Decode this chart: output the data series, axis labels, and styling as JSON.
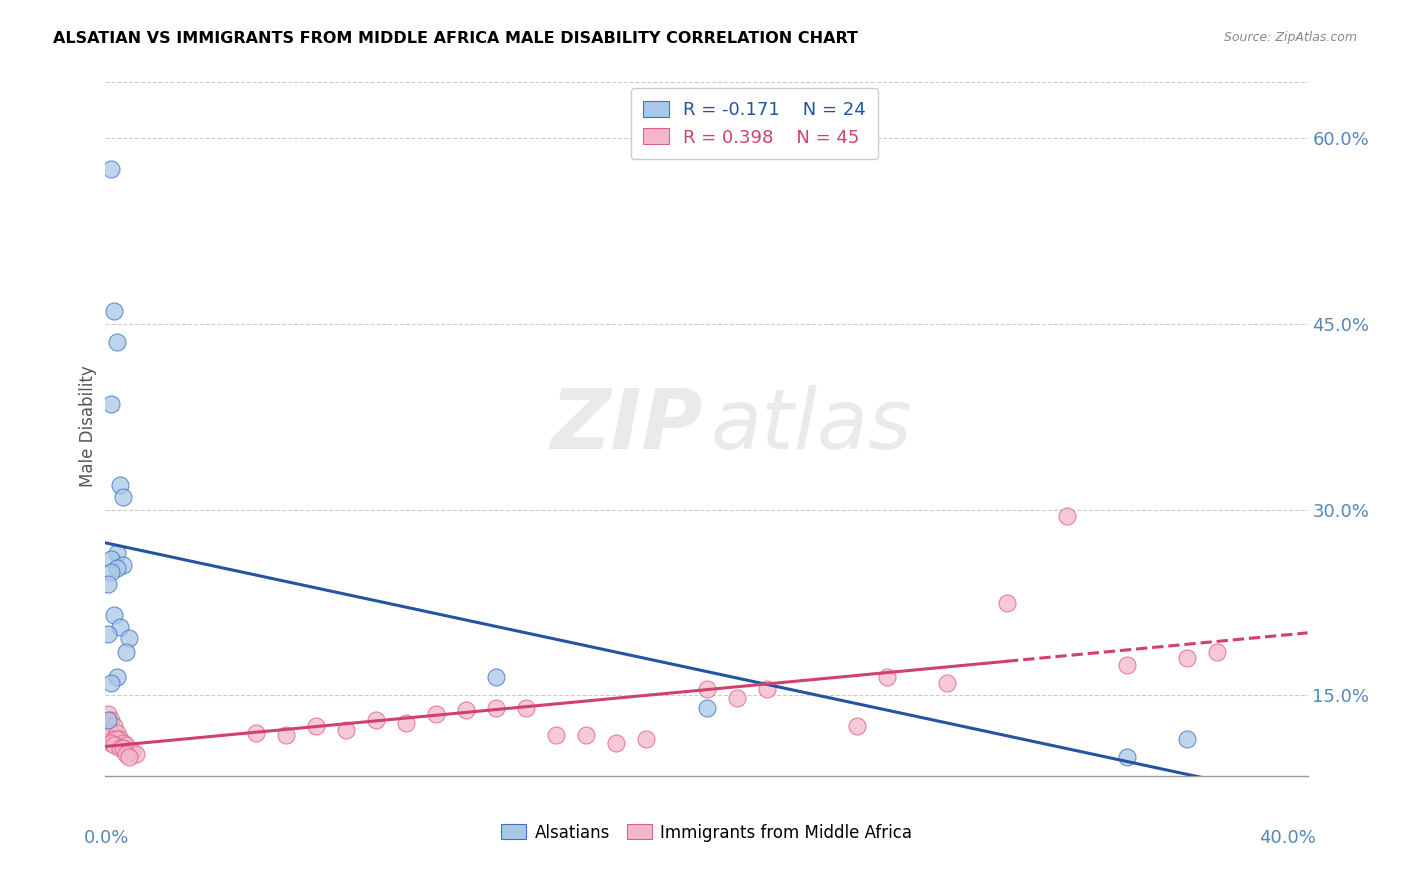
{
  "title": "ALSATIAN VS IMMIGRANTS FROM MIDDLE AFRICA MALE DISABILITY CORRELATION CHART",
  "source": "Source: ZipAtlas.com",
  "ylabel": "Male Disability",
  "xlim": [
    0.0,
    0.4
  ],
  "ylim": [
    0.085,
    0.65
  ],
  "legend_r1": "R = -0.171",
  "legend_n1": "N = 24",
  "legend_r2": "R = 0.398",
  "legend_n2": "N = 45",
  "blue_scatter_color": "#A8C8E8",
  "blue_edge_color": "#4472C4",
  "pink_scatter_color": "#F4B8CC",
  "pink_edge_color": "#E06080",
  "blue_line_color": "#2255A0",
  "pink_line_color": "#D04070",
  "ytick_positions": [
    0.15,
    0.3,
    0.45,
    0.6
  ],
  "ytick_labels": [
    "15.0%",
    "30.0%",
    "45.0%",
    "60.0%"
  ],
  "alsatians_x": [
    0.002,
    0.003,
    0.004,
    0.002,
    0.005,
    0.006,
    0.004,
    0.002,
    0.006,
    0.004,
    0.002,
    0.001,
    0.003,
    0.005,
    0.001,
    0.008,
    0.007,
    0.004,
    0.002,
    0.001,
    0.13,
    0.2,
    0.34,
    0.36
  ],
  "alsatians_y": [
    0.575,
    0.46,
    0.435,
    0.385,
    0.32,
    0.31,
    0.265,
    0.26,
    0.255,
    0.253,
    0.25,
    0.24,
    0.215,
    0.205,
    0.2,
    0.196,
    0.185,
    0.165,
    0.16,
    0.13,
    0.165,
    0.14,
    0.1,
    0.115
  ],
  "immigrants_x": [
    0.001,
    0.002,
    0.001,
    0.003,
    0.002,
    0.004,
    0.003,
    0.005,
    0.004,
    0.006,
    0.002,
    0.003,
    0.007,
    0.005,
    0.006,
    0.008,
    0.009,
    0.01,
    0.007,
    0.008,
    0.05,
    0.06,
    0.07,
    0.08,
    0.09,
    0.1,
    0.11,
    0.12,
    0.13,
    0.14,
    0.15,
    0.16,
    0.17,
    0.18,
    0.2,
    0.21,
    0.22,
    0.25,
    0.26,
    0.28,
    0.3,
    0.32,
    0.34,
    0.36,
    0.37
  ],
  "immigrants_y": [
    0.135,
    0.13,
    0.125,
    0.125,
    0.12,
    0.12,
    0.115,
    0.115,
    0.115,
    0.112,
    0.112,
    0.11,
    0.11,
    0.108,
    0.108,
    0.105,
    0.105,
    0.103,
    0.103,
    0.1,
    0.12,
    0.118,
    0.125,
    0.122,
    0.13,
    0.128,
    0.135,
    0.138,
    0.14,
    0.14,
    0.118,
    0.118,
    0.112,
    0.115,
    0.155,
    0.148,
    0.155,
    0.125,
    0.165,
    0.16,
    0.225,
    0.295,
    0.175,
    0.18,
    0.185
  ]
}
